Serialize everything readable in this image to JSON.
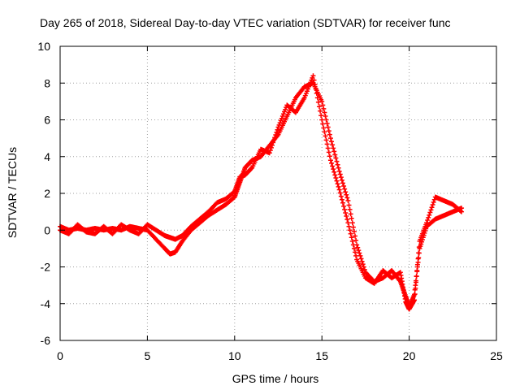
{
  "chart_data": {
    "type": "scatter",
    "title": "Day 265 of 2018, Sidereal Day-to-day VTEC variation (SDTVAR) for receiver func",
    "xlabel": "GPS time / hours",
    "ylabel": "SDTVAR / TECUs",
    "xlim": [
      0,
      25
    ],
    "ylim": [
      -6,
      10
    ],
    "xticks": [
      0,
      5,
      10,
      15,
      20,
      25
    ],
    "yticks": [
      -6,
      -4,
      -2,
      0,
      2,
      4,
      6,
      8,
      10
    ],
    "xtick_labels": [
      "0",
      "5",
      "10",
      "15",
      "20",
      "25"
    ],
    "ytick_labels": [
      "-6",
      "-4",
      "-2",
      "0",
      "2",
      "4",
      "6",
      "8",
      "10"
    ],
    "grid": true,
    "marker": "+",
    "series": [
      {
        "name": "SDTVAR",
        "color": "#ff0000",
        "x": [
          0.0,
          0.5,
          1.0,
          1.5,
          2.0,
          2.5,
          3.0,
          3.5,
          4.0,
          4.5,
          5.0,
          5.5,
          6.0,
          6.3,
          6.6,
          7.0,
          7.5,
          8.0,
          8.5,
          9.0,
          9.5,
          10.0,
          10.3,
          10.6,
          11.0,
          11.5,
          12.0,
          12.5,
          13.0,
          13.5,
          14.0,
          14.5,
          15.0,
          15.5,
          16.0,
          16.5,
          17.0,
          17.5,
          18.0,
          18.5,
          19.0,
          19.5,
          19.8,
          20.0,
          20.3,
          20.6,
          21.0,
          21.5,
          22.0,
          22.5,
          23.0
        ],
        "y": [
          0.2,
          0.0,
          0.1,
          0.0,
          0.1,
          0.0,
          0.1,
          0.0,
          0.2,
          0.1,
          0.0,
          -0.5,
          -1.0,
          -1.3,
          -1.2,
          -0.6,
          0.0,
          0.4,
          0.8,
          1.1,
          1.4,
          1.8,
          2.6,
          3.4,
          3.8,
          4.0,
          4.6,
          5.2,
          6.2,
          7.2,
          7.8,
          8.0,
          7.0,
          5.0,
          3.2,
          1.6,
          -0.8,
          -2.3,
          -2.8,
          -2.6,
          -2.2,
          -2.8,
          -3.6,
          -4.2,
          -3.5,
          -1.0,
          0.2,
          0.6,
          0.8,
          1.0,
          1.2
        ],
        "y2": [
          0.0,
          -0.2,
          0.3,
          -0.1,
          -0.2,
          0.2,
          -0.2,
          0.3,
          0.0,
          -0.2,
          0.3,
          0.0,
          -0.3,
          -0.4,
          -0.5,
          -0.3,
          0.2,
          0.6,
          1.0,
          1.5,
          1.7,
          2.1,
          2.9,
          3.0,
          3.4,
          4.4,
          4.2,
          5.6,
          6.8,
          6.4,
          7.2,
          8.4,
          6.0,
          3.8,
          2.2,
          0.4,
          -1.6,
          -2.6,
          -2.9,
          -2.2,
          -2.6,
          -2.3,
          -3.9,
          -4.3,
          -3.8,
          -0.6,
          0.4,
          1.8,
          1.6,
          1.4,
          1.0
        ]
      }
    ]
  }
}
